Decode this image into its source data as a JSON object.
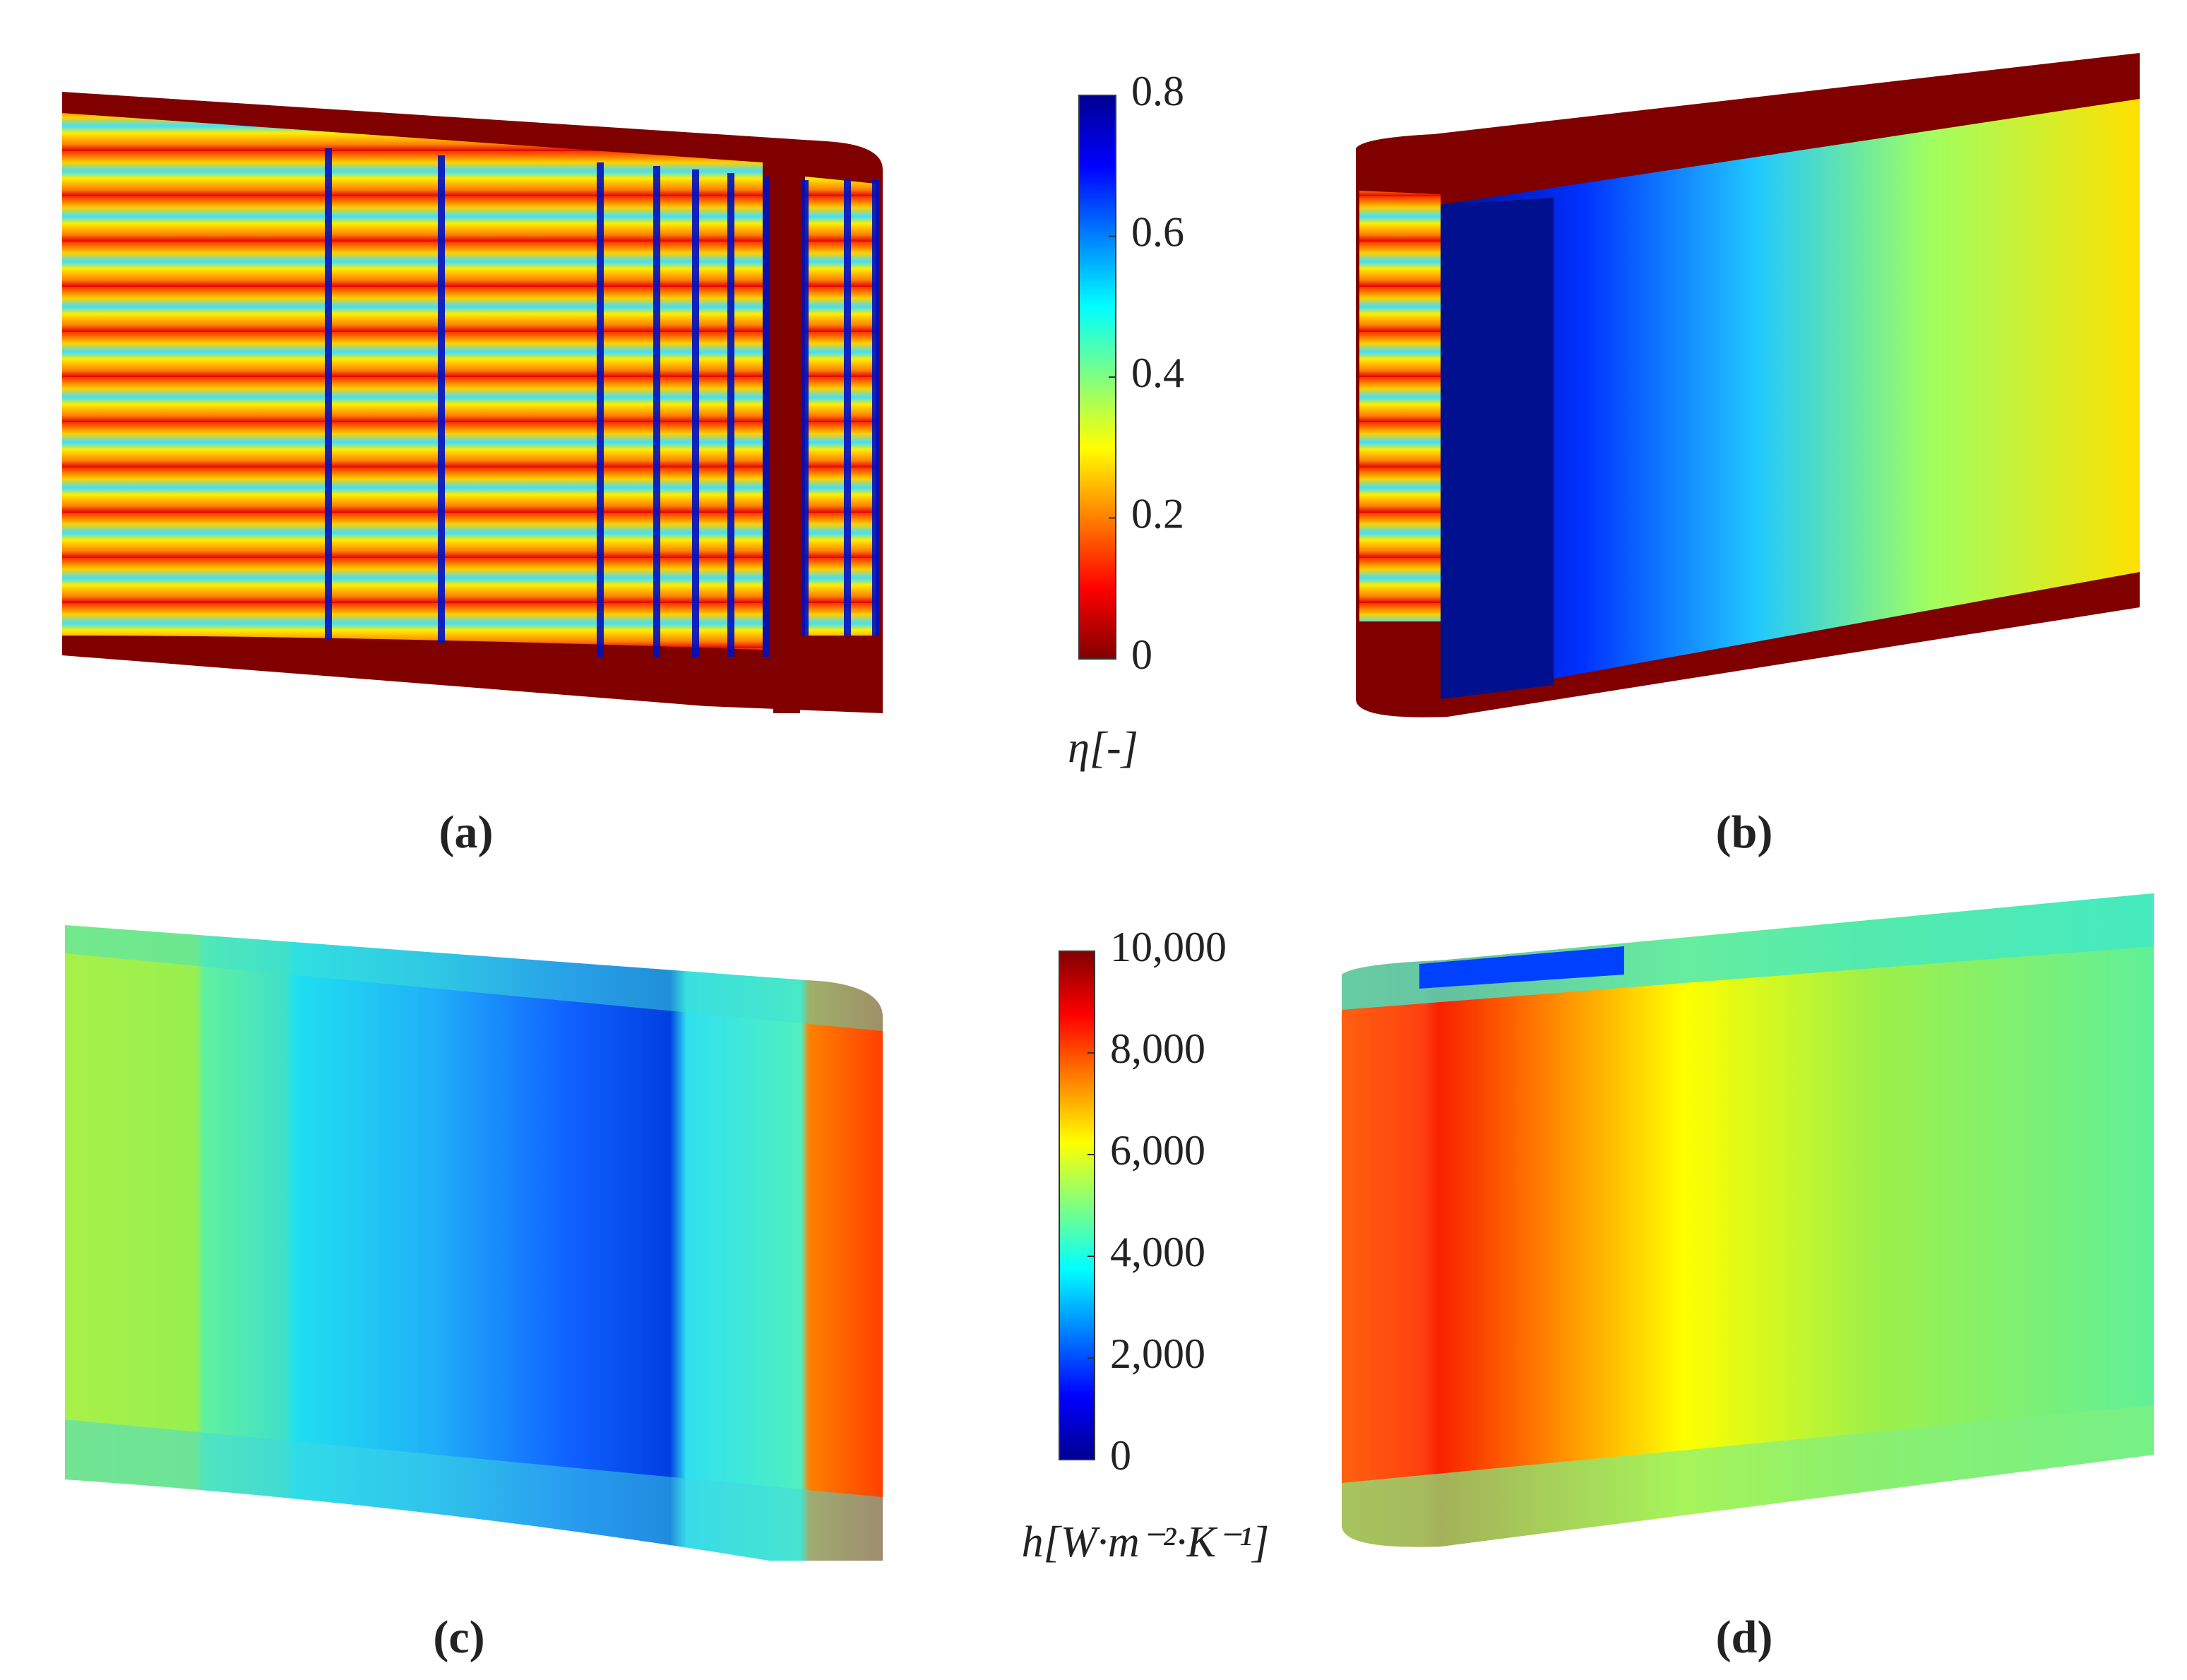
{
  "panels": [
    {
      "label": "(a)"
    },
    {
      "label": "(b)"
    },
    {
      "label": "(c)"
    },
    {
      "label": "(d)"
    }
  ],
  "colorbars": [
    {
      "label": "η[-]",
      "lim": [
        0,
        0.8
      ],
      "ticks": [
        0,
        0.2,
        0.4,
        0.6,
        0.8
      ]
    },
    {
      "label": "h[W·m⁻²·K⁻¹]",
      "lim": [
        0,
        10000
      ],
      "ticks": [
        0,
        {
          "value": 2000,
          "label": "2,000"
        },
        {
          "value": 4000,
          "label": "4,000"
        },
        {
          "value": 6000,
          "label": "6,000"
        },
        {
          "value": 8000,
          "label": "8,000"
        },
        {
          "value": 10000,
          "label": "10,000"
        }
      ]
    }
  ]
}
